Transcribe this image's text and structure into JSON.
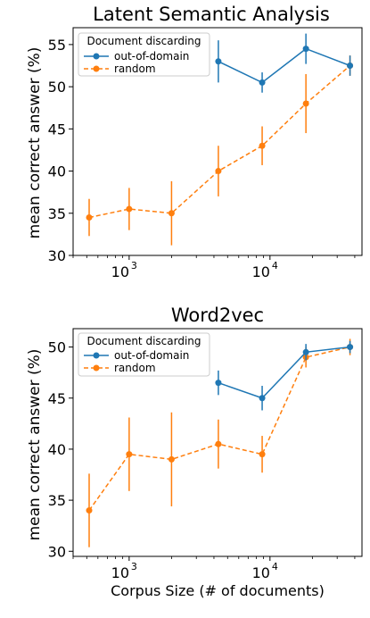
{
  "colors": {
    "out_of_domain": "#1f77b4",
    "random": "#ff7f0e"
  },
  "chart_data": [
    {
      "type": "line",
      "title": "Latent Semantic Analysis",
      "xlabel": "",
      "ylabel": "mean correct answer (%)",
      "x_scale": "log",
      "xlim": [
        400,
        45000
      ],
      "ylim": [
        30,
        57
      ],
      "y_ticks": [
        30,
        35,
        40,
        45,
        50,
        55
      ],
      "x_ticks": [
        {
          "base": "10",
          "exp": "3",
          "value": 1000
        },
        {
          "base": "10",
          "exp": "4",
          "value": 10000
        }
      ],
      "legend": {
        "title": "Document discarding",
        "position": "top-left"
      },
      "series": [
        {
          "name": "out-of-domain",
          "style": "solid",
          "points": [
            {
              "x": 4300,
              "y": 53.0,
              "err": 2.5
            },
            {
              "x": 8800,
              "y": 50.5,
              "err": 1.2
            },
            {
              "x": 18000,
              "y": 54.5,
              "err": 1.8
            },
            {
              "x": 37000,
              "y": 52.5,
              "err": 1.2
            }
          ]
        },
        {
          "name": "random",
          "style": "dashed",
          "points": [
            {
              "x": 520,
              "y": 34.5,
              "err": 2.2
            },
            {
              "x": 1000,
              "y": 35.5,
              "err": 2.5
            },
            {
              "x": 2000,
              "y": 35.0,
              "err": 3.8
            },
            {
              "x": 4300,
              "y": 40.0,
              "err": 3.0
            },
            {
              "x": 8800,
              "y": 43.0,
              "err": 2.3
            },
            {
              "x": 18000,
              "y": 48.0,
              "err": 3.5
            },
            {
              "x": 37000,
              "y": 52.5,
              "err": 1.2
            }
          ]
        }
      ]
    },
    {
      "type": "line",
      "title": "Word2vec",
      "xlabel": "Corpus Size (# of documents)",
      "ylabel": "mean correct answer (%)",
      "x_scale": "log",
      "xlim": [
        400,
        45000
      ],
      "ylim": [
        29.5,
        51.8
      ],
      "y_ticks": [
        30,
        35,
        40,
        45,
        50
      ],
      "x_ticks": [
        {
          "base": "10",
          "exp": "3",
          "value": 1000
        },
        {
          "base": "10",
          "exp": "4",
          "value": 10000
        }
      ],
      "legend": {
        "title": "Document discarding",
        "position": "top-left"
      },
      "series": [
        {
          "name": "out-of-domain",
          "style": "solid",
          "points": [
            {
              "x": 4300,
              "y": 46.5,
              "err": 1.2
            },
            {
              "x": 8800,
              "y": 45.0,
              "err": 1.2
            },
            {
              "x": 18000,
              "y": 49.5,
              "err": 0.8
            },
            {
              "x": 37000,
              "y": 50.0,
              "err": 0.6
            }
          ]
        },
        {
          "name": "random",
          "style": "dashed",
          "points": [
            {
              "x": 520,
              "y": 34.0,
              "err": 3.6
            },
            {
              "x": 1000,
              "y": 39.5,
              "err": 3.6
            },
            {
              "x": 2000,
              "y": 39.0,
              "err": 4.6
            },
            {
              "x": 4300,
              "y": 40.5,
              "err": 2.4
            },
            {
              "x": 8800,
              "y": 39.5,
              "err": 1.8
            },
            {
              "x": 18000,
              "y": 49.0,
              "err": 1.0
            },
            {
              "x": 37000,
              "y": 50.0,
              "err": 0.8
            }
          ]
        }
      ]
    }
  ]
}
